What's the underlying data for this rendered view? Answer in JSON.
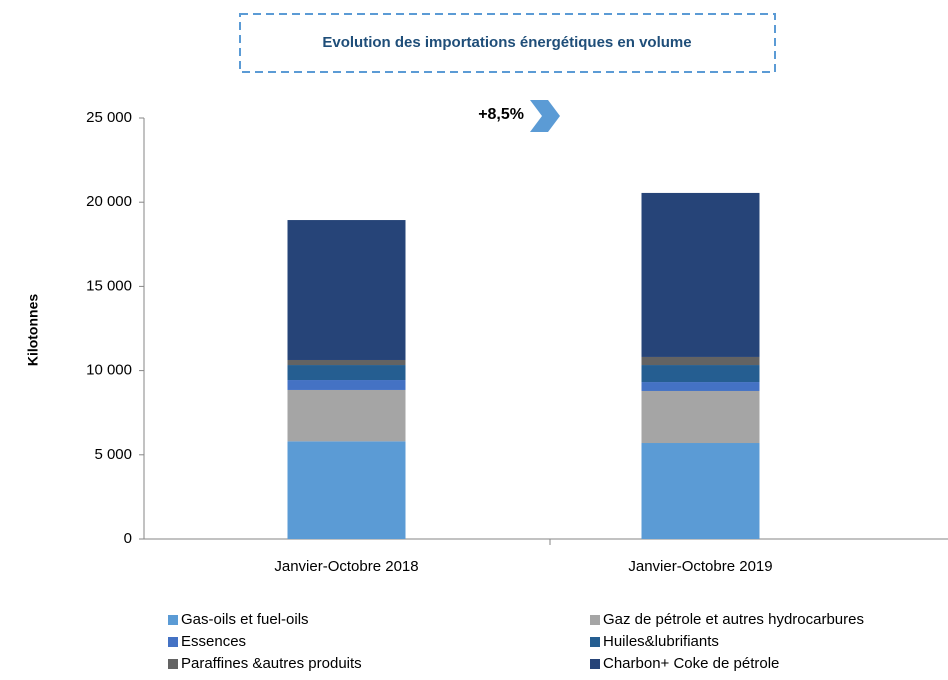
{
  "chart_data": {
    "type": "stacked_bar",
    "title": "Evolution des importations énergétiques en volume",
    "y_label": "Kilotonnes",
    "annotation": "+8,5%",
    "categories": [
      "Janvier-Octobre 2018",
      "Janvier-Octobre 2019"
    ],
    "series": [
      {
        "name": "Gas-oils et fuel-oils",
        "color": "#5b9bd5",
        "values": [
          5800,
          5700
        ]
      },
      {
        "name": "Gaz de pétrole et autres hydrocarbures",
        "color": "#a5a5a5",
        "values": [
          3050,
          3090
        ]
      },
      {
        "name": "Essences",
        "color": "#4472c4",
        "values": [
          590,
          530
        ]
      },
      {
        "name": "Huiles&lubrifiants",
        "color": "#255e91",
        "values": [
          890,
          1010
        ]
      },
      {
        "name": "Paraffines &autres produits",
        "color": "#636363",
        "values": [
          300,
          480
        ]
      },
      {
        "name": "Charbon+ Coke de pétrole",
        "color": "#264478",
        "values": [
          8310,
          9740
        ]
      }
    ],
    "ylim": [
      0,
      25000
    ],
    "yticks": [
      0,
      {
        "value": 5000,
        "label": "5 000"
      },
      {
        "value": 10000,
        "label": "10 000"
      },
      {
        "value": 15000,
        "label": "15 000"
      },
      {
        "value": 20000,
        "label": "20 000"
      },
      {
        "value": 25000,
        "label": "25 000"
      }
    ]
  }
}
